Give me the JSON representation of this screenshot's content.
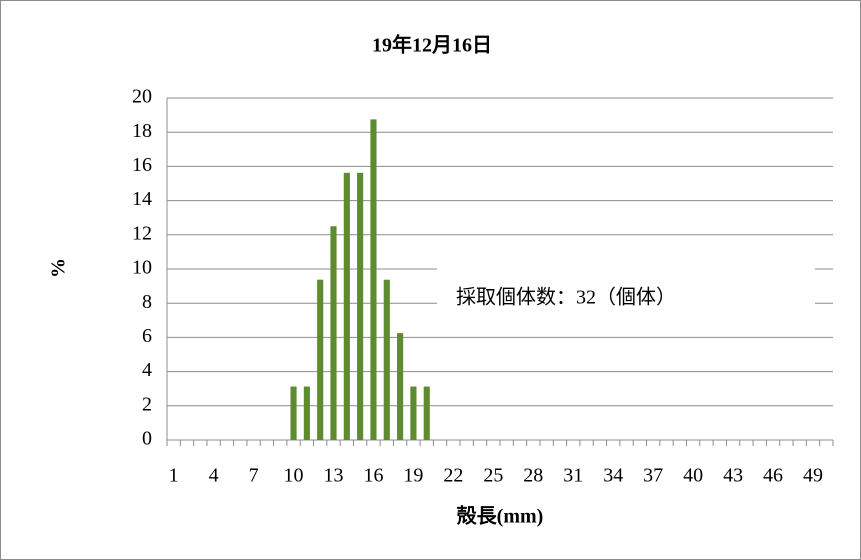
{
  "chart_data": {
    "type": "bar",
    "title": "19年12月16日",
    "x_label": "殻長(mm)",
    "y_label": "%",
    "annotation": "採取個体数：32（個体）",
    "categories": [
      "1",
      null,
      null,
      "4",
      null,
      null,
      "7",
      null,
      null,
      "10",
      null,
      null,
      "13",
      null,
      null,
      "16",
      null,
      null,
      "19",
      null,
      null,
      "22",
      null,
      null,
      "25",
      null,
      null,
      "28",
      null,
      null,
      "31",
      null,
      null,
      "34",
      null,
      null,
      "37",
      null,
      null,
      "40",
      null,
      null,
      "43",
      null,
      null,
      "46",
      null,
      null,
      "49",
      null
    ],
    "values": [
      0,
      0,
      0,
      0,
      0,
      0,
      0,
      0,
      0,
      3.125,
      3.125,
      9.375,
      12.5,
      15.625,
      15.625,
      18.75,
      9.375,
      6.25,
      3.125,
      3.125,
      0,
      0,
      0,
      0,
      0,
      0,
      0,
      0,
      0,
      0,
      0,
      0,
      0,
      0,
      0,
      0,
      0,
      0,
      0,
      0,
      0,
      0,
      0,
      0,
      0,
      0,
      0,
      0,
      0,
      0
    ],
    "color": "#5e8b2f",
    "ylim": [
      0,
      20
    ],
    "yticks": [
      0,
      2,
      4,
      6,
      8,
      10,
      12,
      14,
      16,
      18,
      20
    ],
    "grid": true
  }
}
